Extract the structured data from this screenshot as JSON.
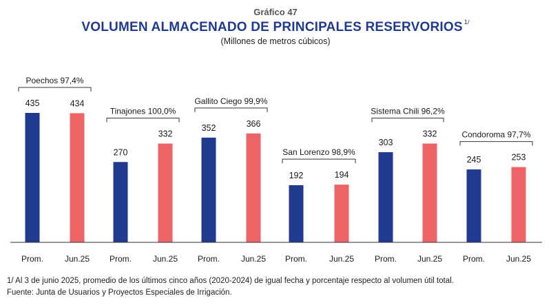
{
  "header": {
    "figure_number": "Gráfico 47",
    "title": "VOLUMEN ALMACENADO DE PRINCIPALES RESERVORIOS",
    "title_footnote_marker": "1/",
    "subtitle": "(Millones de metros cúbicos)"
  },
  "chart_data": {
    "type": "bar",
    "title": "VOLUMEN ALMACENADO DE PRINCIPALES RESERVORIOS",
    "ylabel": "",
    "ylim": [
      0,
      460
    ],
    "grid": false,
    "legend": "none",
    "bar_labels": [
      "Prom.",
      "Jun.25"
    ],
    "colors": {
      "Prom.": "#1f3a8f",
      "Jun.25": "#ee6366",
      "axis": "#333333",
      "bracket": "#333333"
    },
    "groups": [
      {
        "label": "Poechos 97,4%",
        "values": [
          435,
          434
        ]
      },
      {
        "label": "Tinajones 100,0%",
        "values": [
          270,
          332
        ]
      },
      {
        "label": "Gallito Ciego 99,9%",
        "values": [
          352,
          366
        ]
      },
      {
        "label": "San Lorenzo 98,9%",
        "values": [
          192,
          194
        ]
      },
      {
        "label": "Sistema Chili 96,2%",
        "values": [
          303,
          332
        ]
      },
      {
        "label": "Condoroma 97,7%",
        "values": [
          245,
          253
        ]
      }
    ]
  },
  "notes": {
    "note1": "1/ Al 3 de junio 2025, promedio de los últimos cinco años (2020-2024) de igual fecha y porcentaje respecto al volumen útil total.",
    "note2": "Fuente: Junta de Usuarios y Proyectos Especiales de Irrigación."
  }
}
